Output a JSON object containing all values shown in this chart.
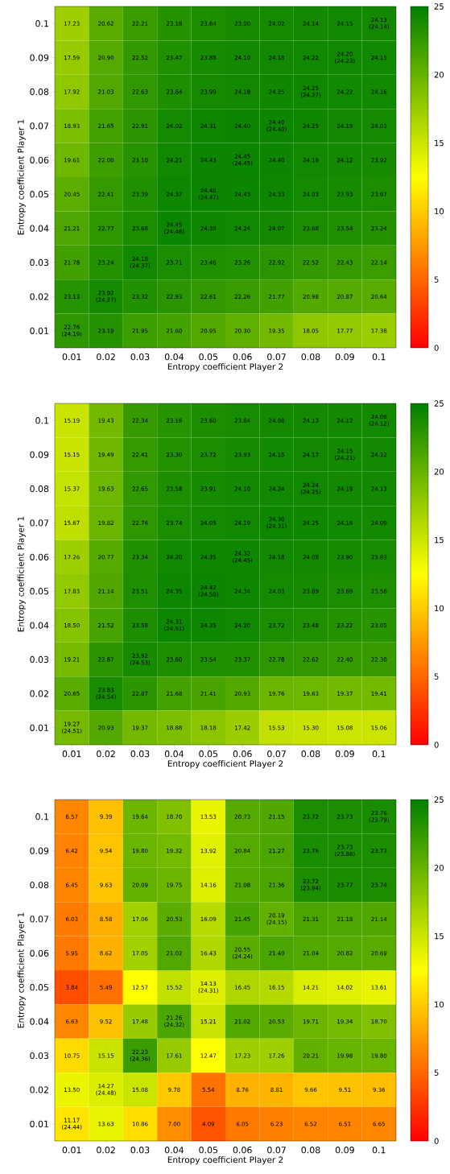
{
  "chart_data": [
    {
      "type": "heatmap",
      "xlabel": "Entropy coefficient Player 2",
      "ylabel": "Entropy coefficient Player 1",
      "categories": [
        "0.01",
        "0.02",
        "0.03",
        "0.04",
        "0.05",
        "0.06",
        "0.07",
        "0.08",
        "0.09",
        "0.1"
      ],
      "y_categories": [
        "0.1",
        "0.09",
        "0.08",
        "0.07",
        "0.06",
        "0.05",
        "0.04",
        "0.03",
        "0.02",
        "0.01"
      ],
      "clim": [
        0,
        25
      ],
      "cticks": [
        0,
        5,
        10,
        15,
        20,
        25
      ],
      "cells": [
        [
          17.23,
          20.62,
          22.21,
          23.18,
          23.64,
          23.9,
          24.02,
          24.14,
          24.15,
          24.13
        ],
        [
          17.59,
          20.9,
          22.52,
          23.47,
          23.88,
          24.1,
          24.18,
          24.22,
          24.2,
          24.15
        ],
        [
          17.92,
          21.03,
          22.63,
          23.64,
          23.99,
          24.18,
          24.25,
          24.25,
          24.22,
          24.16
        ],
        [
          18.93,
          21.65,
          22.91,
          24.02,
          24.31,
          24.4,
          24.4,
          24.25,
          24.19,
          24.03
        ],
        [
          19.61,
          22.0,
          23.1,
          24.21,
          24.43,
          24.45,
          24.4,
          24.19,
          24.12,
          23.92
        ],
        [
          20.45,
          22.41,
          23.39,
          24.37,
          24.48,
          24.43,
          24.33,
          24.03,
          23.93,
          23.67
        ],
        [
          21.21,
          22.77,
          23.68,
          24.45,
          24.38,
          24.24,
          24.07,
          23.68,
          23.54,
          23.24
        ],
        [
          21.78,
          23.24,
          24.18,
          23.71,
          23.46,
          23.26,
          22.92,
          22.52,
          22.43,
          22.14
        ],
        [
          23.13,
          23.92,
          23.32,
          22.93,
          22.61,
          22.26,
          21.77,
          20.98,
          20.87,
          20.64
        ],
        [
          22.76,
          23.19,
          21.95,
          21.6,
          20.95,
          20.3,
          19.35,
          18.05,
          17.77,
          17.38
        ]
      ],
      "cell_labels": [
        [
          "17.23",
          "20.62",
          "22.21",
          "23.18",
          "23.64",
          "23.90",
          "24.02",
          "24.14",
          "24.15",
          "24.13 (24.14)"
        ],
        [
          "17.59",
          "20.90",
          "22.52",
          "23.47",
          "23.88",
          "24.10",
          "24.18",
          "24.22",
          "24.20 (24.23)",
          "24.15"
        ],
        [
          "17.92",
          "21.03",
          "22.63",
          "23.64",
          "23.99",
          "24.18",
          "24.25",
          "24.25 (24.27)",
          "24.22",
          "24.16"
        ],
        [
          "18.93",
          "21.65",
          "22.91",
          "24.02",
          "24.31",
          "24.40",
          "24.40 (24.40)",
          "24.25",
          "24.19",
          "24.03"
        ],
        [
          "19.61",
          "22.00",
          "23.10",
          "24.21",
          "24.43",
          "24.45 (24.45)",
          "24.40",
          "24.19",
          "24.12",
          "23.92"
        ],
        [
          "20.45",
          "22.41",
          "23.39",
          "24.37",
          "24.48 (24.47)",
          "24.43",
          "24.33",
          "24.03",
          "23.93",
          "23.67"
        ],
        [
          "21.21",
          "22.77",
          "23.68",
          "24.45 (24.46)",
          "24.38",
          "24.24",
          "24.07",
          "23.68",
          "23.54",
          "23.24"
        ],
        [
          "21.78",
          "23.24",
          "24.18 (24.37)",
          "23.71",
          "23.46",
          "23.26",
          "22.92",
          "22.52",
          "22.43",
          "22.14"
        ],
        [
          "23.13",
          "23.92 (24.27)",
          "23.32",
          "22.93",
          "22.61",
          "22.26",
          "21.77",
          "20.98",
          "20.87",
          "20.64"
        ],
        [
          "22.76 (24.19)",
          "23.19",
          "21.95",
          "21.60",
          "20.95",
          "20.30",
          "19.35",
          "18.05",
          "17.77",
          "17.38"
        ]
      ]
    },
    {
      "type": "heatmap",
      "xlabel": "Entropy coefficient Player 2",
      "ylabel": "Entropy coefficient Player 1",
      "categories": [
        "0.01",
        "0.02",
        "0.03",
        "0.04",
        "0.05",
        "0.06",
        "0.07",
        "0.08",
        "0.09",
        "0.1"
      ],
      "y_categories": [
        "0.1",
        "0.09",
        "0.08",
        "0.07",
        "0.06",
        "0.05",
        "0.04",
        "0.03",
        "0.02",
        "0.01"
      ],
      "clim": [
        0,
        25
      ],
      "cticks": [
        0,
        5,
        10,
        15,
        20,
        25
      ],
      "cells": [
        [
          15.19,
          19.43,
          22.34,
          23.16,
          23.6,
          23.84,
          24.08,
          24.13,
          24.12,
          24.09
        ],
        [
          15.15,
          19.49,
          22.41,
          23.3,
          23.72,
          23.93,
          24.15,
          24.17,
          24.15,
          24.12
        ],
        [
          15.37,
          19.63,
          22.65,
          23.58,
          23.91,
          24.1,
          24.24,
          24.24,
          24.19,
          24.13
        ],
        [
          15.67,
          19.82,
          22.76,
          23.74,
          24.05,
          24.19,
          24.3,
          24.25,
          24.16,
          24.09
        ],
        [
          17.26,
          20.77,
          23.34,
          24.2,
          24.35,
          24.32,
          24.18,
          24.08,
          23.9,
          23.83
        ],
        [
          17.83,
          21.14,
          23.51,
          24.35,
          24.42,
          24.34,
          24.03,
          23.89,
          23.69,
          23.56
        ],
        [
          18.5,
          21.52,
          23.58,
          24.31,
          24.35,
          24.2,
          23.72,
          23.48,
          23.22,
          23.05
        ],
        [
          19.21,
          22.87,
          23.92,
          23.6,
          23.54,
          23.37,
          22.78,
          22.62,
          22.4,
          22.3
        ],
        [
          20.65,
          23.83,
          22.87,
          21.68,
          21.41,
          20.93,
          19.76,
          19.63,
          19.37,
          19.41
        ],
        [
          19.27,
          20.93,
          19.37,
          18.88,
          18.18,
          17.42,
          15.53,
          15.3,
          15.08,
          15.06
        ]
      ],
      "cell_labels": [
        [
          "15.19",
          "19.43",
          "22.34",
          "23.16",
          "23.60",
          "23.84",
          "24.08",
          "24.13",
          "24.12",
          "24.09 (24.12)"
        ],
        [
          "15.15",
          "19.49",
          "22.41",
          "23.30",
          "23.72",
          "23.93",
          "24.15",
          "24.17",
          "24.15 (24.21)",
          "24.12"
        ],
        [
          "15.37",
          "19.63",
          "22.65",
          "23.58",
          "23.91",
          "24.10",
          "24.24",
          "24.24 (24.25)",
          "24.19",
          "24.13"
        ],
        [
          "15.67",
          "19.82",
          "22.76",
          "23.74",
          "24.05",
          "24.19",
          "24.30 (24.31)",
          "24.25",
          "24.16",
          "24.09"
        ],
        [
          "17.26",
          "20.77",
          "23.34",
          "24.20",
          "24.35",
          "24.32 (24.45)",
          "24.18",
          "24.08",
          "23.90",
          "23.83"
        ],
        [
          "17.83",
          "21.14",
          "23.51",
          "24.35",
          "24.42 (24.50)",
          "24.34",
          "24.03",
          "23.89",
          "23.69",
          "23.56"
        ],
        [
          "18.50",
          "21.52",
          "23.58",
          "24.31 (24.51)",
          "24.35",
          "24.20",
          "23.72",
          "23.48",
          "23.22",
          "23.05"
        ],
        [
          "19.21",
          "22.87",
          "23.92 (24.53)",
          "23.60",
          "23.54",
          "23.37",
          "22.78",
          "22.62",
          "22.40",
          "22.30"
        ],
        [
          "20.65",
          "23.83 (24.54)",
          "22.87",
          "21.68",
          "21.41",
          "20.93",
          "19.76",
          "19.63",
          "19.37",
          "19.41"
        ],
        [
          "19.27 (24.51)",
          "20.93",
          "19.37",
          "18.88",
          "18.18",
          "17.42",
          "15.53",
          "15.30",
          "15.08",
          "15.06"
        ]
      ]
    },
    {
      "type": "heatmap",
      "xlabel": "Entropy coefficient Player 2",
      "ylabel": "Entropy coefficient Player 1",
      "categories": [
        "0.01",
        "0.02",
        "0.03",
        "0.04",
        "0.05",
        "0.06",
        "0.07",
        "0.08",
        "0.09",
        "0.1"
      ],
      "y_categories": [
        "0.1",
        "0.09",
        "0.08",
        "0.07",
        "0.06",
        "0.05",
        "0.04",
        "0.03",
        "0.02",
        "0.01"
      ],
      "clim": [
        0,
        25
      ],
      "cticks": [
        0,
        5,
        10,
        15,
        20,
        25
      ],
      "cells": [
        [
          6.57,
          9.39,
          19.64,
          18.7,
          13.53,
          20.73,
          21.15,
          23.72,
          23.73,
          23.76
        ],
        [
          6.42,
          9.54,
          19.8,
          19.32,
          13.92,
          20.84,
          21.27,
          23.76,
          23.73,
          23.73
        ],
        [
          6.45,
          9.63,
          20.09,
          19.75,
          14.16,
          21.08,
          21.36,
          23.72,
          23.77,
          23.74
        ],
        [
          6.03,
          8.58,
          17.06,
          20.53,
          16.09,
          21.45,
          20.19,
          21.31,
          21.18,
          21.14
        ],
        [
          5.95,
          8.62,
          17.05,
          21.02,
          16.43,
          20.55,
          21.4,
          21.04,
          20.82,
          20.69
        ],
        [
          3.84,
          5.49,
          12.57,
          15.52,
          14.13,
          16.45,
          16.15,
          14.21,
          14.02,
          13.61
        ],
        [
          6.63,
          9.52,
          17.48,
          21.26,
          15.21,
          21.02,
          20.53,
          19.71,
          19.34,
          18.7
        ],
        [
          10.75,
          15.15,
          22.23,
          17.61,
          12.47,
          17.23,
          17.26,
          20.21,
          19.98,
          19.8
        ],
        [
          13.5,
          14.27,
          15.08,
          9.78,
          5.54,
          8.76,
          8.81,
          9.66,
          9.51,
          9.36
        ],
        [
          11.17,
          13.63,
          10.86,
          7.0,
          4.09,
          6.05,
          6.23,
          6.52,
          6.51,
          6.65
        ]
      ],
      "cell_labels": [
        [
          "6.57",
          "9.39",
          "19.64",
          "18.70",
          "13.53",
          "20.73",
          "21.15",
          "23.72",
          "23.73",
          "23.76 (23.79)"
        ],
        [
          "6.42",
          "9.54",
          "19.80",
          "19.32",
          "13.92",
          "20.84",
          "21.27",
          "23.76",
          "23.73 (23.88)",
          "23.73"
        ],
        [
          "6.45",
          "9.63",
          "20.09",
          "19.75",
          "14.16",
          "21.08",
          "21.36",
          "23.72 (23.94)",
          "23.77",
          "23.74"
        ],
        [
          "6.03",
          "8.58",
          "17.06",
          "20.53",
          "16.09",
          "21.45",
          "20.19 (24.15)",
          "21.31",
          "21.18",
          "21.14"
        ],
        [
          "5.95",
          "8.62",
          "17.05",
          "21.02",
          "16.43",
          "20.55 (24.24)",
          "21.40",
          "21.04",
          "20.82",
          "20.69"
        ],
        [
          "3.84",
          "5.49",
          "12.57",
          "15.52",
          "14.13 (24.31)",
          "16.45",
          "16.15",
          "14.21",
          "14.02",
          "13.61"
        ],
        [
          "6.63",
          "9.52",
          "17.48",
          "21.26 (24.32)",
          "15.21",
          "21.02",
          "20.53",
          "19.71",
          "19.34",
          "18.70"
        ],
        [
          "10.75",
          "15.15",
          "22.23 (24.36)",
          "17.61",
          "12.47",
          "17.23",
          "17.26",
          "20.21",
          "19.98",
          "19.80"
        ],
        [
          "13.50",
          "14.27 (24.48)",
          "15.08",
          "9.78",
          "5.54",
          "8.76",
          "8.81",
          "9.66",
          "9.51",
          "9.36"
        ],
        [
          "11.17 (24.44)",
          "13.63",
          "10.86",
          "7.00",
          "4.09",
          "6.05",
          "6.23",
          "6.52",
          "6.51",
          "6.65"
        ]
      ]
    }
  ]
}
